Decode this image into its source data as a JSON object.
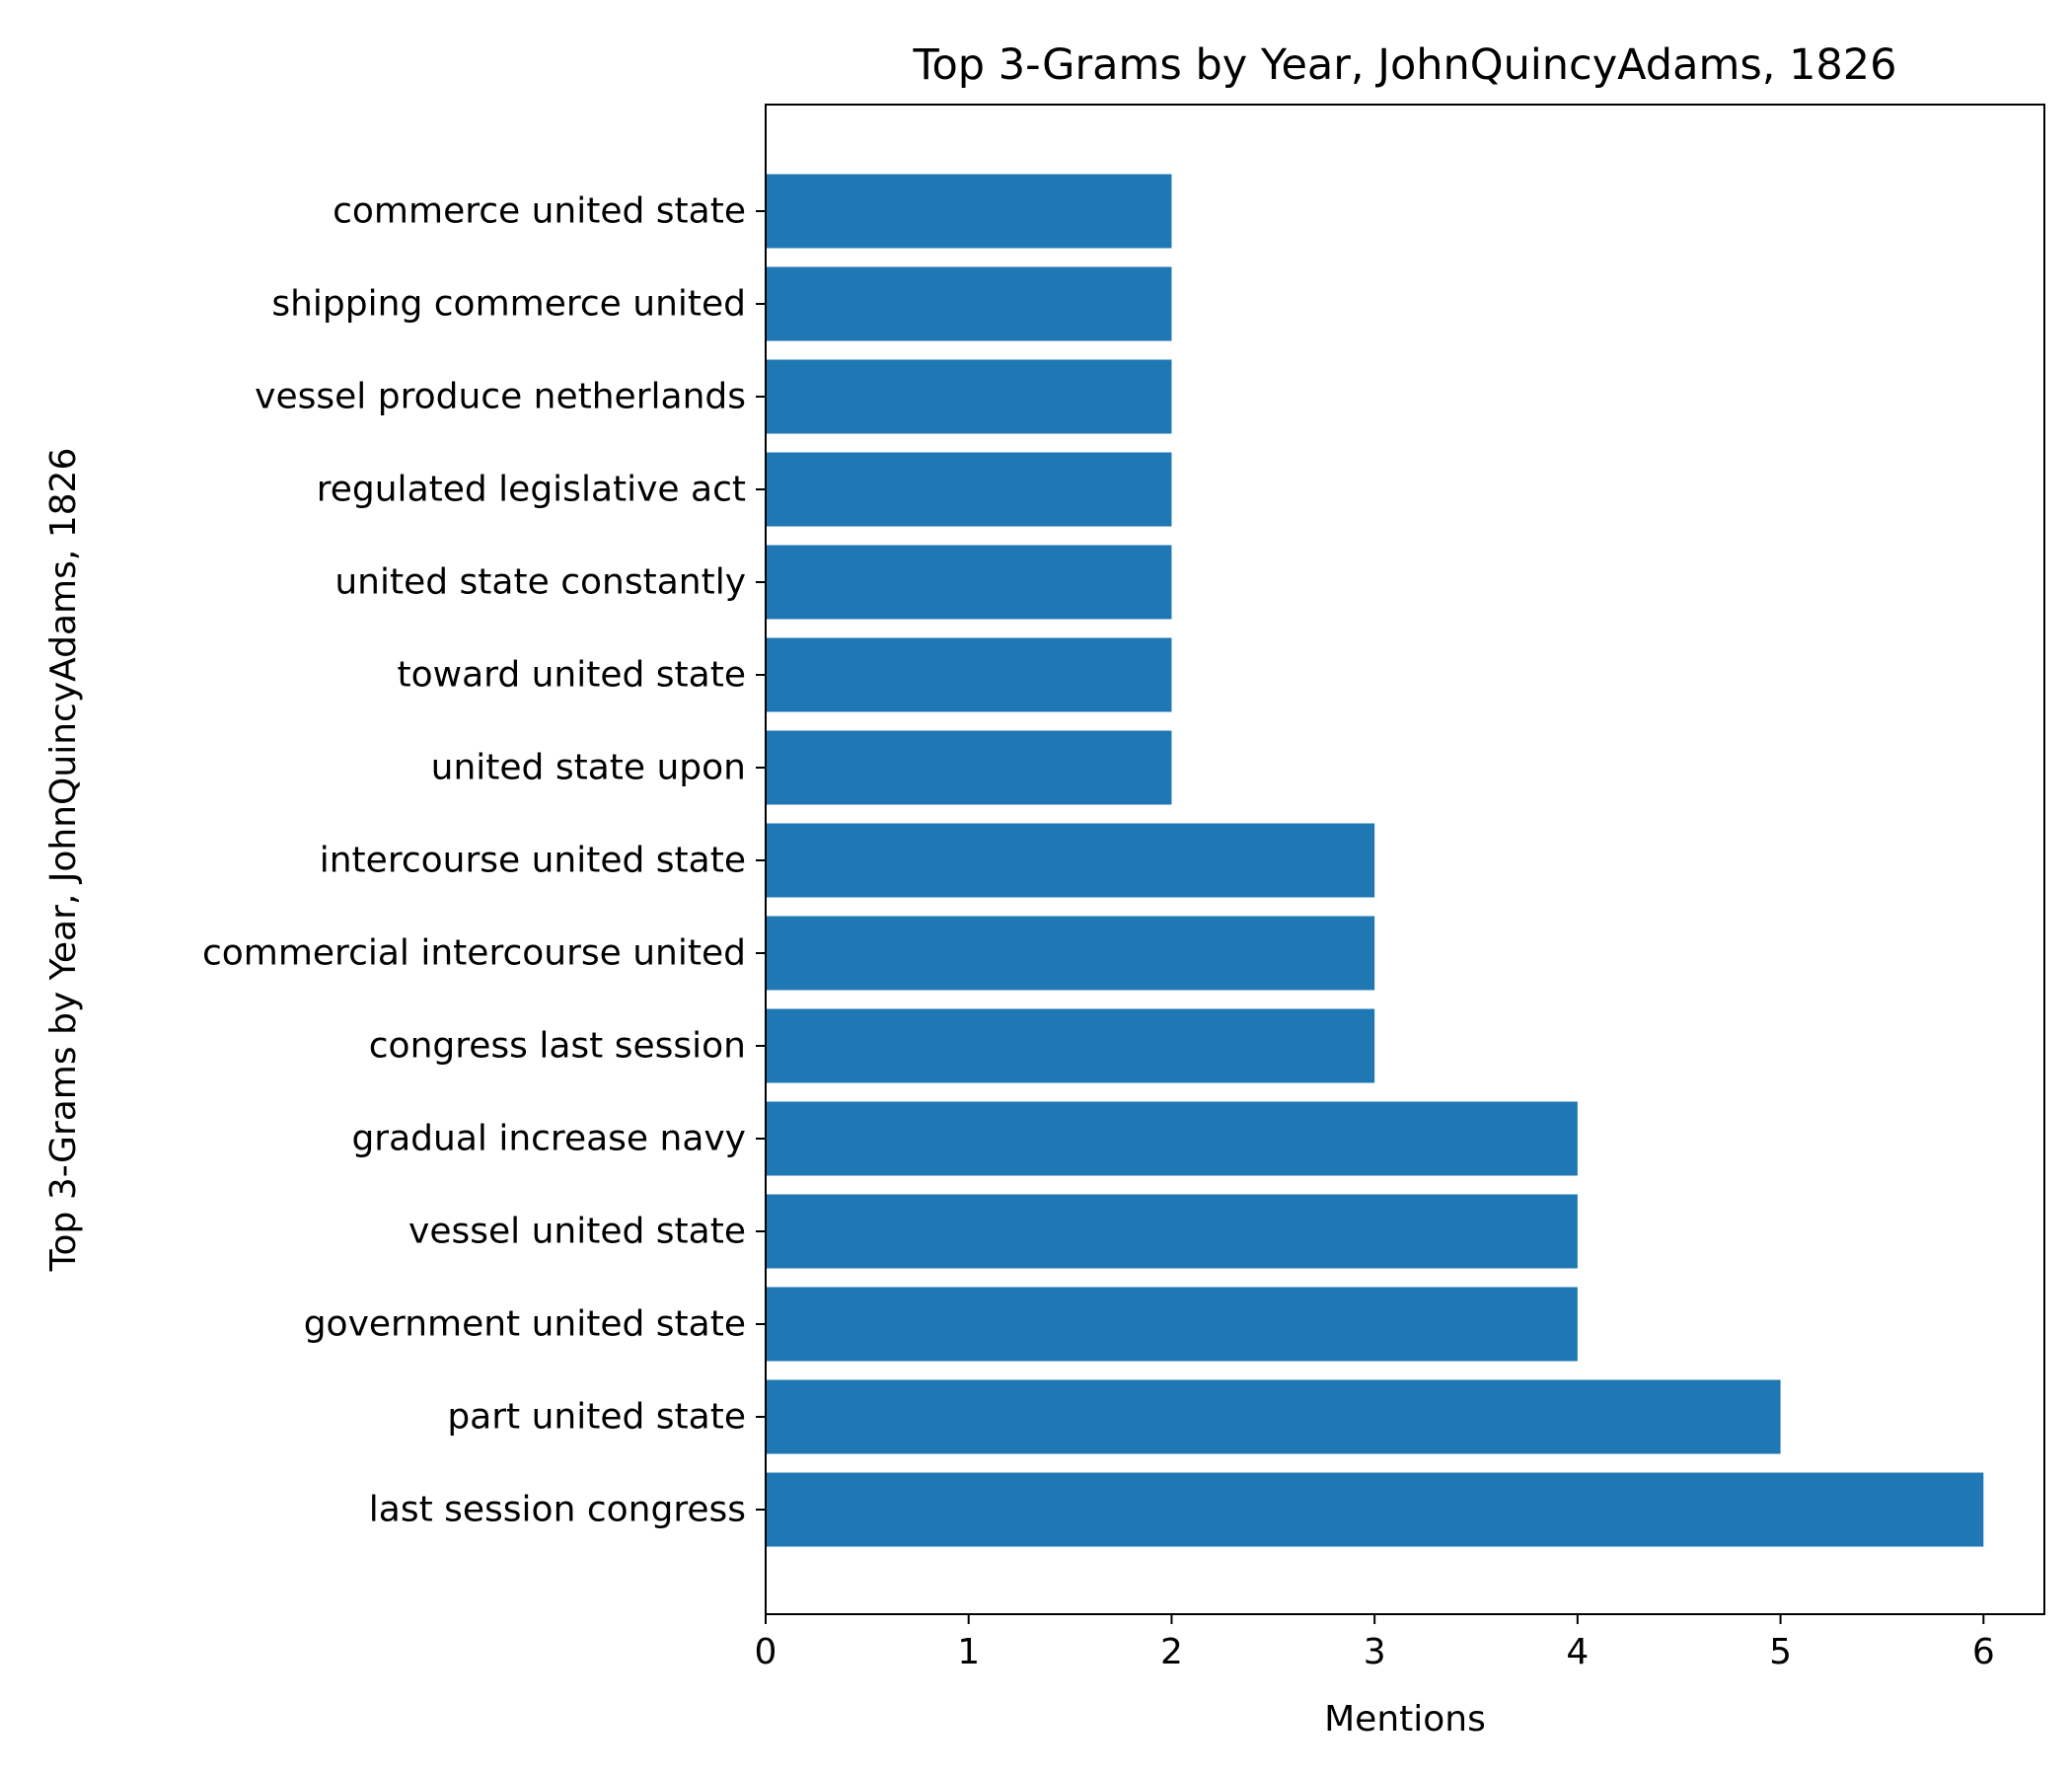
{
  "chart_data": {
    "type": "bar",
    "orientation": "horizontal",
    "title": "Top 3-Grams by Year, JohnQuincyAdams, 1826",
    "xlabel": "Mentions",
    "ylabel": "Top 3-Grams by Year, JohnQuincyAdams, 1826",
    "xlim": [
      0,
      6.3
    ],
    "xticks": [
      "0",
      "1",
      "2",
      "3",
      "4",
      "5",
      "6"
    ],
    "grid": false,
    "bar_color": "#1f77b4",
    "categories": [
      "last session congress",
      "part united state",
      "government united state",
      "vessel united state",
      "gradual increase navy",
      "congress last session",
      "commercial intercourse united",
      "intercourse united state",
      "united state upon",
      "toward united state",
      "united state constantly",
      "regulated legislative act",
      "vessel produce netherlands",
      "shipping commerce united",
      "commerce united state"
    ],
    "values": [
      6,
      5,
      4,
      4,
      4,
      3,
      3,
      3,
      2,
      2,
      2,
      2,
      2,
      2,
      2
    ]
  }
}
